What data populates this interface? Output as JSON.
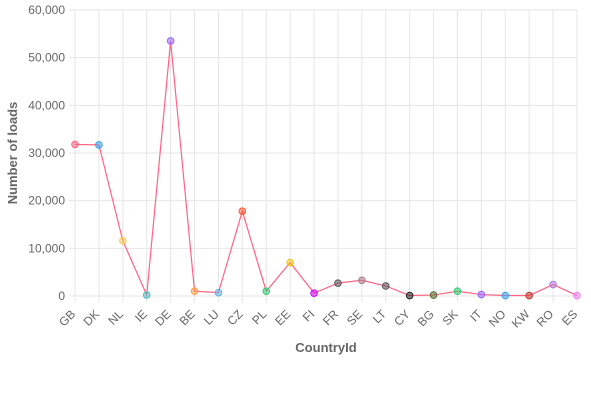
{
  "chart_data": {
    "type": "line",
    "title": "",
    "xlabel": "CountryId",
    "ylabel": "Number of loads",
    "categories": [
      "GB",
      "DK",
      "NL",
      "IE",
      "DE",
      "BE",
      "LU",
      "CZ",
      "PL",
      "EE",
      "FI",
      "FR",
      "SE",
      "LT",
      "CY",
      "BG",
      "SK",
      "IT",
      "NO",
      "KW",
      "RO",
      "ES"
    ],
    "series": [
      {
        "values": [
          31800,
          31700,
          11600,
          200,
          53500,
          1000,
          700,
          17800,
          1000,
          7000,
          600,
          2700,
          3300,
          2100,
          100,
          200,
          1000,
          300,
          100,
          100,
          2400,
          100
        ],
        "line_color": "#ff6384",
        "point_colors": [
          "#ff6384",
          "#36a2eb",
          "#ffcd56",
          "#4bc0c0",
          "#9966ff",
          "#ff9f40",
          "#5ab4e6",
          "#ff5733",
          "#2ecc71",
          "#f1c40f",
          "#cc00ff",
          "#555555",
          "#a97c8b",
          "#555555",
          "#222222",
          "#556b2f",
          "#2ecc71",
          "#9966ff",
          "#36a2eb",
          "#c0392b",
          "#b07cd8",
          "#ee82ee"
        ]
      }
    ],
    "yticks": [
      "0",
      "10,000",
      "20,000",
      "30,000",
      "40,000",
      "50,000",
      "60,000"
    ],
    "ylim": [
      0,
      60000
    ],
    "grid": true,
    "legend": "none"
  }
}
